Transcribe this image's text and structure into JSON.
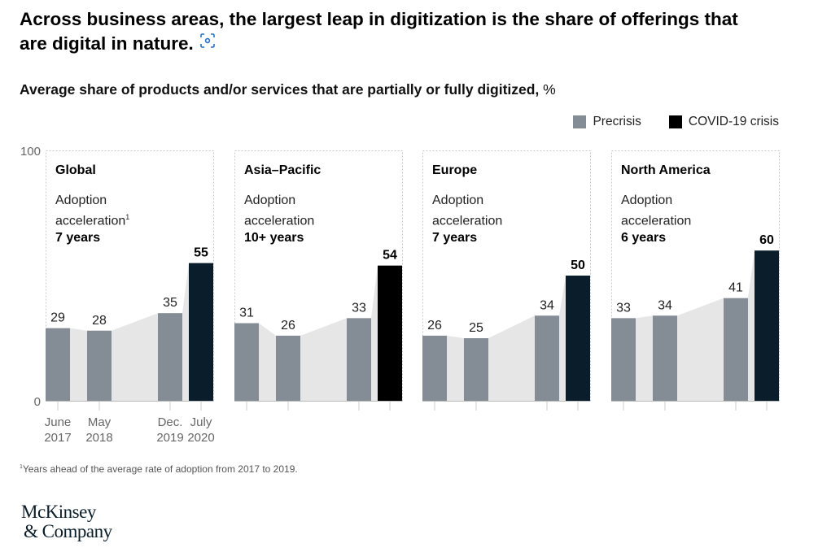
{
  "header": {
    "title": "Across business areas, the largest leap in digitization is the share of offerings that are digital in nature.",
    "title_icon": "zoom-expand-icon",
    "subtitle": "Average share of products and/or services that are partially or fully digitized,",
    "subtitle_unit": "%"
  },
  "legend": [
    {
      "label": "Precrisis",
      "color": "#848d96"
    },
    {
      "label": "COVID-19 crisis",
      "color": "#0a1d2a"
    }
  ],
  "chart_data": {
    "type": "bar",
    "ylim": [
      0,
      100
    ],
    "yticks": [
      "0",
      "100"
    ],
    "categories": [
      "June 2017",
      "May 2018",
      "Dec. 2019",
      "July 2020"
    ],
    "category_labels": [
      [
        "June",
        "2017"
      ],
      [
        "May",
        "2018"
      ],
      [
        "Dec.",
        "2019"
      ],
      [
        "July",
        "2020"
      ]
    ],
    "colors": {
      "precrisis": "#848d96",
      "covid": "#0a1d2a",
      "covid_asia": "#000000",
      "area": "#e6e6e6"
    },
    "panels": [
      {
        "name": "Global",
        "accel_label_1": "Adoption",
        "accel_label_2": "acceleration",
        "footnote_mark": "1",
        "accel_value": "7 years",
        "values": [
          29,
          28,
          35,
          55
        ]
      },
      {
        "name": "Asia–Pacific",
        "accel_label_1": "Adoption",
        "accel_label_2": "acceleration",
        "footnote_mark": "",
        "accel_value": "10+ years",
        "values": [
          31,
          26,
          33,
          54
        ]
      },
      {
        "name": "Europe",
        "accel_label_1": "Adoption",
        "accel_label_2": "acceleration",
        "footnote_mark": "",
        "accel_value": "7 years",
        "values": [
          26,
          25,
          34,
          50
        ]
      },
      {
        "name": "North America",
        "accel_label_1": "Adoption",
        "accel_label_2": "acceleration",
        "footnote_mark": "",
        "accel_value": "6 years",
        "values": [
          33,
          34,
          41,
          60
        ]
      }
    ]
  },
  "footnote": {
    "mark": "1",
    "text": "Years ahead of the average rate of adoption from 2017 to 2019."
  },
  "logo": {
    "line1": "McKinsey",
    "line2": "& Company"
  }
}
